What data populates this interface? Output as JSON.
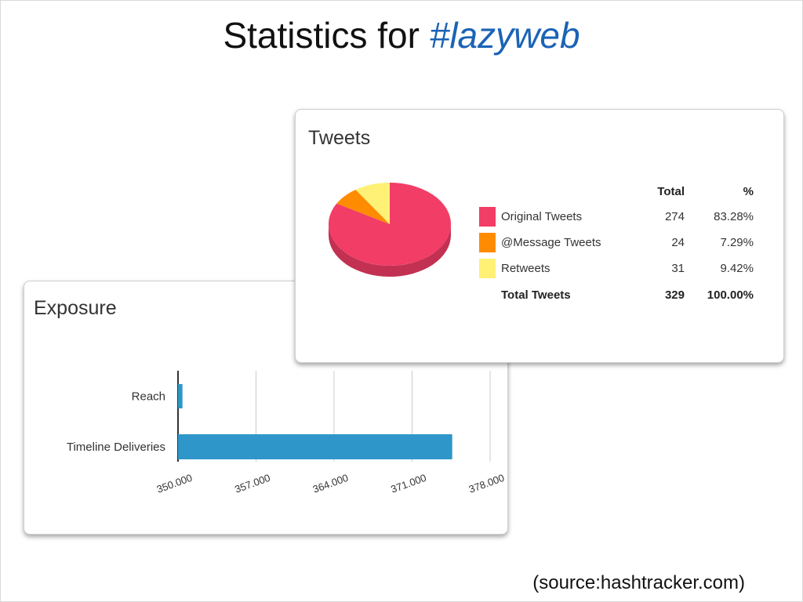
{
  "slide": {
    "title_prefix": "Statistics for",
    "hashtag": "#lazyweb",
    "source": "(source:hashtracker.com)"
  },
  "colors": {
    "hashtag": "#1a63b6",
    "bar": "#2e96c9",
    "original": "#f23d66",
    "message": "#ff8c00",
    "retweets": "#fff176"
  },
  "tweets_panel": {
    "title": "Tweets",
    "headers": {
      "total": "Total",
      "pct": "%"
    },
    "rows": [
      {
        "label": "Original Tweets",
        "total": "274",
        "pct": "83.28%",
        "color": "#f23d66"
      },
      {
        "label": "@Message Tweets",
        "total": "24",
        "pct": "7.29%",
        "color": "#ff8c00"
      },
      {
        "label": "Retweets",
        "total": "31",
        "pct": "9.42%",
        "color": "#fff176"
      }
    ],
    "total_row": {
      "label": "Total Tweets",
      "total": "329",
      "pct": "100.00%"
    }
  },
  "exposure_panel": {
    "title": "Exposure"
  },
  "chart_data": [
    {
      "type": "pie",
      "title": "Tweets",
      "categories": [
        "Original Tweets",
        "@Message Tweets",
        "Retweets"
      ],
      "values": [
        274,
        24,
        31
      ],
      "percent": [
        83.28,
        7.29,
        9.42
      ],
      "colors": [
        "#f23d66",
        "#ff8c00",
        "#fff176"
      ],
      "legend": "right"
    },
    {
      "type": "bar",
      "orientation": "horizontal",
      "title": "Exposure",
      "categories": [
        "Reach",
        "Timeline Deliveries"
      ],
      "values": [
        350400,
        374600
      ],
      "xlim": [
        350000,
        378000
      ],
      "xticks": [
        350000,
        357000,
        364000,
        371000,
        378000
      ],
      "xtick_labels": [
        "350.000",
        "357.000",
        "364.000",
        "371.000",
        "378.000"
      ],
      "grid": true,
      "color": "#2e96c9"
    }
  ]
}
